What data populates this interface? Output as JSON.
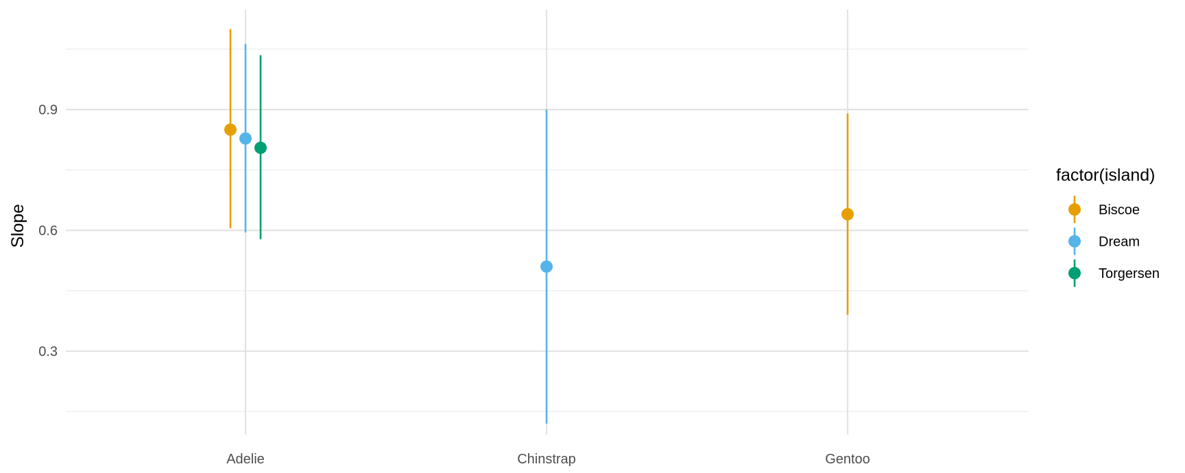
{
  "chart_data": {
    "type": "scatter",
    "subtype": "pointrange",
    "title": "",
    "xlabel": "",
    "ylabel": "Slope",
    "categories": [
      "Adelie",
      "Chinstrap",
      "Gentoo"
    ],
    "ylim": [
      0.12,
      1.12
    ],
    "yticks": [
      0.3,
      0.6,
      0.9
    ],
    "ytick_labels": [
      "0.3",
      "0.6",
      "0.9"
    ],
    "grid": true,
    "legend": {
      "title": "factor(island)",
      "position": "right"
    },
    "series": [
      {
        "name": "Biscoe",
        "color": "#E69F00",
        "points": [
          {
            "category": "Adelie",
            "estimate": 0.85,
            "low": 0.605,
            "high": 1.1
          },
          {
            "category": "Gentoo",
            "estimate": 0.64,
            "low": 0.39,
            "high": 0.89
          }
        ]
      },
      {
        "name": "Dream",
        "color": "#56B4E9",
        "points": [
          {
            "category": "Adelie",
            "estimate": 0.828,
            "low": 0.595,
            "high": 1.063
          },
          {
            "category": "Chinstrap",
            "estimate": 0.51,
            "low": 0.12,
            "high": 0.9
          }
        ]
      },
      {
        "name": "Torgersen",
        "color": "#009E73",
        "points": [
          {
            "category": "Adelie",
            "estimate": 0.805,
            "low": 0.578,
            "high": 1.035
          }
        ]
      }
    ]
  }
}
